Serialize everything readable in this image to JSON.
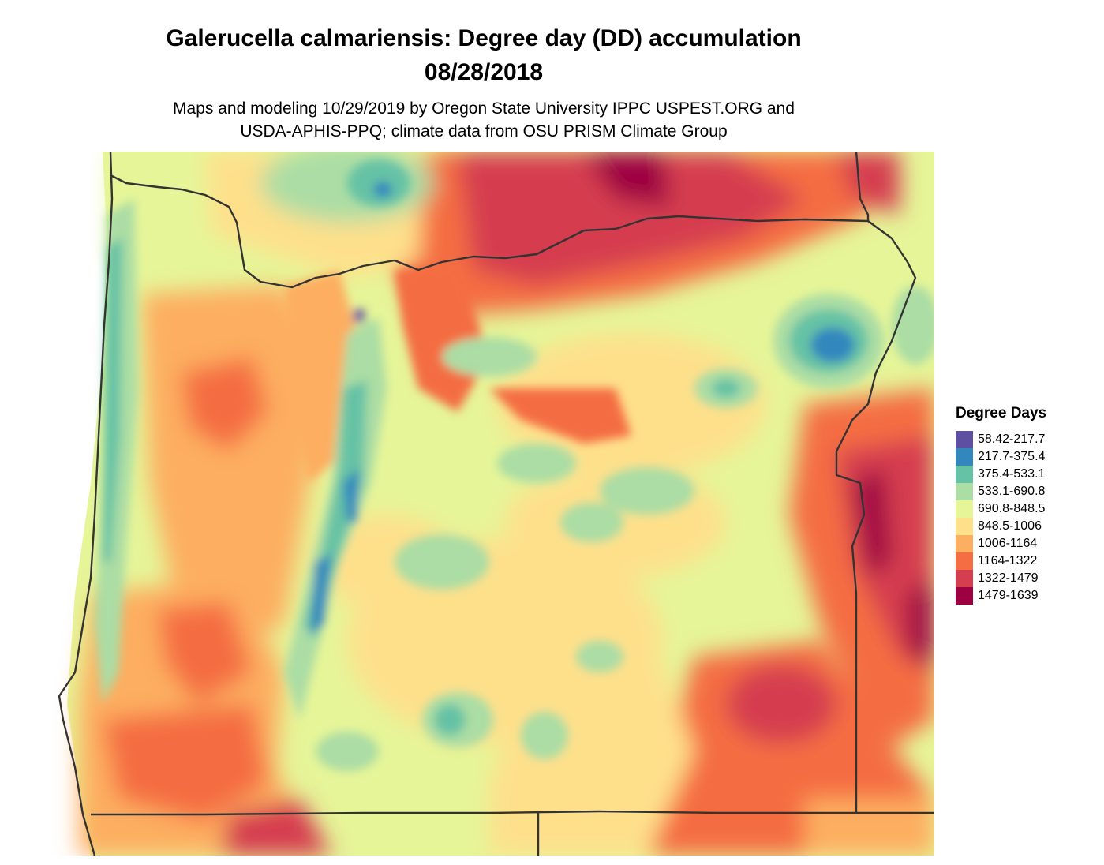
{
  "map": {
    "title_line1": "Galerucella calmariensis: Degree day (DD) accumulation",
    "title_line2": "08/28/2018",
    "subtitle_line1": "Maps and modeling 10/29/2019 by Oregon State University IPPC USPEST.ORG and",
    "subtitle_line2": "USDA-APHIS-PPQ; climate data from OSU PRISM Climate Group"
  },
  "legend": {
    "title": "Degree Days",
    "items": [
      {
        "label": "58.42-217.7",
        "color": "#5E4FA2"
      },
      {
        "label": "217.7-375.4",
        "color": "#3288BD"
      },
      {
        "label": "375.4-533.1",
        "color": "#66C2A5"
      },
      {
        "label": "533.1-690.8",
        "color": "#ABDDA4"
      },
      {
        "label": "690.8-848.5",
        "color": "#E6F598"
      },
      {
        "label": "848.5-1006",
        "color": "#FEE08B"
      },
      {
        "label": "1006-1164",
        "color": "#FDAE61"
      },
      {
        "label": "1164-1322",
        "color": "#F46D43"
      },
      {
        "label": "1322-1479",
        "color": "#D53E4F"
      },
      {
        "label": "1479-1639",
        "color": "#9E0142"
      }
    ]
  }
}
